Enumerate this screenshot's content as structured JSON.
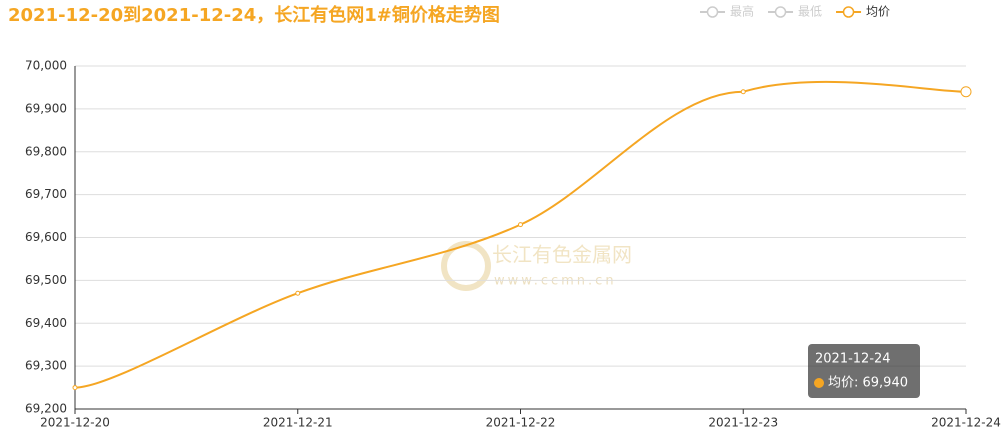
{
  "chart_data": {
    "type": "line",
    "title": "2021-12-20到2021-12-24，长江有色网1#铜价格走势图",
    "categories": [
      "2021-12-20",
      "2021-12-21",
      "2021-12-22",
      "2021-12-23",
      "2021-12-24"
    ],
    "series": [
      {
        "name": "均价",
        "color": "#f5a623",
        "values": [
          69250,
          69470,
          69630,
          69940,
          69940
        ]
      }
    ],
    "legend": {
      "inactive": [
        "最高",
        "最低"
      ],
      "inactive_color": "#cccccc",
      "position": "top-right"
    },
    "ylim": [
      69200,
      70000
    ],
    "yticks": [
      {
        "value": 69200,
        "label": "69,200"
      },
      {
        "value": 69300,
        "label": "69,300"
      },
      {
        "value": 69400,
        "label": "69,400"
      },
      {
        "value": 69500,
        "label": "69,500"
      },
      {
        "value": 69600,
        "label": "69,600"
      },
      {
        "value": 69700,
        "label": "69,700"
      },
      {
        "value": 69800,
        "label": "69,800"
      },
      {
        "value": 69900,
        "label": "69,900"
      },
      {
        "value": 70000,
        "label": "70,000"
      }
    ],
    "grid": true,
    "tooltip": {
      "title": "2021-12-24",
      "text": "均价: 69,940"
    },
    "watermark": {
      "name": "长江有色金属网",
      "url": "www.ccmn.cn"
    }
  }
}
